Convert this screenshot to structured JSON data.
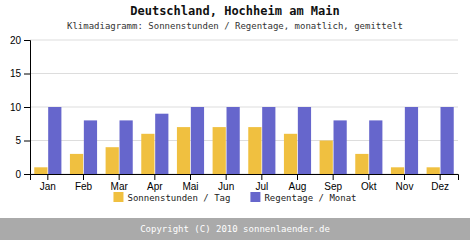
{
  "chart_data": {
    "type": "bar",
    "title": "Deutschland, Hochheim am Main",
    "subtitle": "Klimadiagramm: Sonnenstunden / Regentage, monatlich, gemittelt",
    "categories": [
      "Jan",
      "Feb",
      "Mar",
      "Apr",
      "Mai",
      "Jun",
      "Jul",
      "Aug",
      "Sep",
      "Okt",
      "Nov",
      "Dez"
    ],
    "series": [
      {
        "name": "Sonnenstunden / Tag",
        "color": "#f0c040",
        "values": [
          1,
          3,
          4,
          6,
          7,
          7,
          7,
          6,
          5,
          3,
          1,
          1
        ]
      },
      {
        "name": "Regentage / Monat",
        "color": "#6666cc",
        "values": [
          10,
          8,
          8,
          9,
          10,
          10,
          10,
          10,
          8,
          8,
          10,
          10
        ]
      }
    ],
    "ylim": [
      0,
      20
    ],
    "yticks": [
      0,
      5,
      10,
      15,
      20
    ],
    "grid": true,
    "legend": "bottom",
    "annotations": [
      "Copyright (C) 2010 sonnenlaender.de"
    ]
  }
}
